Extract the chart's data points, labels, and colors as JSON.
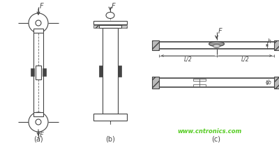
{
  "bg_color": "#ffffff",
  "line_color": "#444444",
  "watermark_color": "#55cc22",
  "watermark": "www.cntronics.com",
  "label_a": "(a)",
  "label_b": "(b)",
  "label_c": "(c)",
  "fig_width": 4.0,
  "fig_height": 2.08,
  "dpi": 100
}
